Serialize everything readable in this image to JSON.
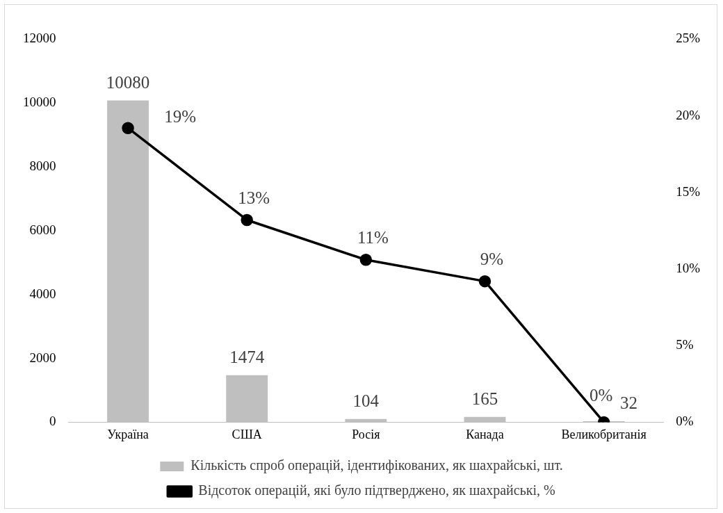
{
  "chart_data": {
    "type": "bar",
    "categories": [
      "Україна",
      "США",
      "Росія",
      "Канада",
      "Великобританія"
    ],
    "series": [
      {
        "name": "Кількість спроб операцій, ідентифікованих, як шахрайські, шт.",
        "color": "#bfbfbf",
        "values": [
          10080,
          1474,
          104,
          165,
          32
        ]
      },
      {
        "type": "line",
        "name": "Відсоток операцій, які було підтверджено, як шахрайські, %",
        "color": "#000000",
        "axis": "y2",
        "values": [
          19.2,
          13.2,
          10.6,
          9.2,
          0
        ],
        "value_labels": [
          "19%",
          "13%",
          "11%",
          "9%",
          "0%"
        ]
      }
    ],
    "ylim": [
      0,
      12000
    ],
    "yticks": [
      0,
      2000,
      4000,
      6000,
      8000,
      10000,
      12000
    ],
    "y2lim": [
      0,
      25
    ],
    "y2ticks": [
      {
        "value": 0,
        "label": "0%"
      },
      {
        "value": 5,
        "label": "5%"
      },
      {
        "value": 10,
        "label": "10%"
      },
      {
        "value": 15,
        "label": "15%"
      },
      {
        "value": 20,
        "label": "20%"
      },
      {
        "value": 25,
        "label": "25%"
      }
    ],
    "data_labels": true,
    "legend": "bottom",
    "grid": false,
    "marker": "circle",
    "line_style": "solid"
  }
}
